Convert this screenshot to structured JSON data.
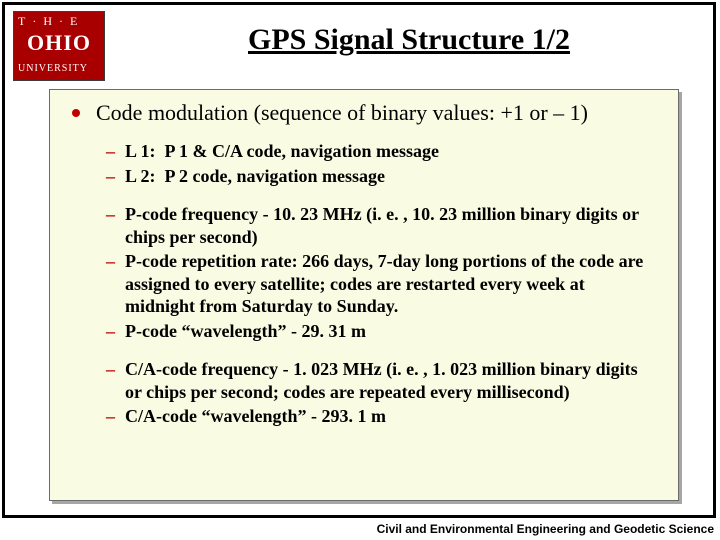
{
  "logo": {
    "line1": "T·H·E",
    "line2": "OHIO",
    "line3": "UNIVERSITY"
  },
  "title": "GPS Signal Structure 1/2",
  "top_bullet": "Code modulation (sequence of binary values: +1 or – 1)",
  "group1": {
    "items": [
      "L 1:  P 1 & C/A code, navigation message",
      "L 2:  P 2 code, navigation message"
    ]
  },
  "group2": {
    "items": [
      "P-code frequency - 10. 23 MHz (i. e. , 10. 23 million binary digits or chips per second)",
      "P-code repetition rate: 266 days, 7-day long portions of the code are assigned to every satellite; codes are restarted every week at midnight from Saturday to Sunday.",
      "P-code “wavelength” - 29. 31 m"
    ]
  },
  "group3": {
    "items": [
      "C/A-code frequency - 1. 023 MHz (i. e. , 1. 023 million binary digits or chips per second; codes are repeated every millisecond)",
      "C/A-code “wavelength” - 293. 1 m"
    ]
  },
  "footer": "Civil and Environmental Engineering and Geodetic Science",
  "colors": {
    "accent_red": "#c10000",
    "logo_red": "#a80000",
    "content_bg": "#fafbe3"
  }
}
